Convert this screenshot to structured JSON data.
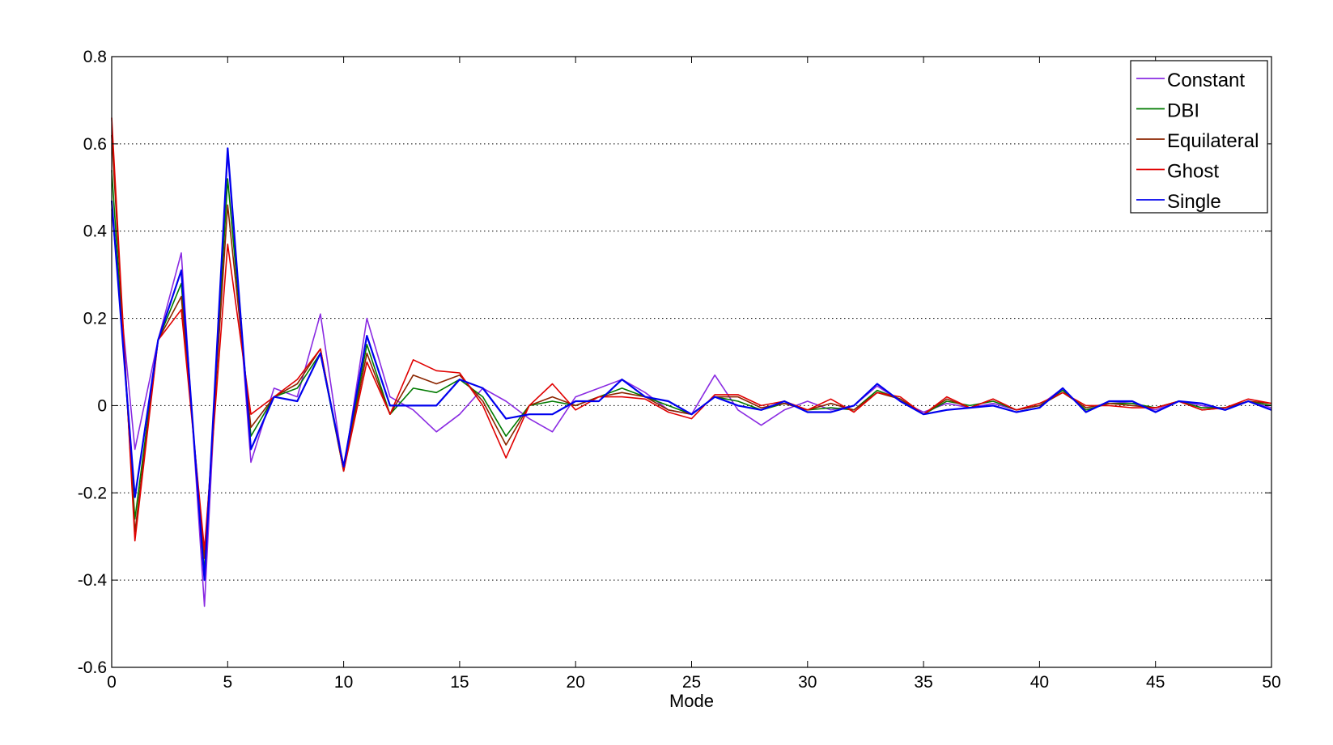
{
  "chart_data": {
    "type": "line",
    "title": "",
    "xlabel": "Mode",
    "ylabel": "",
    "xlim": [
      0,
      50
    ],
    "ylim": [
      -0.6,
      0.8
    ],
    "xticks": [
      0,
      5,
      10,
      15,
      20,
      25,
      30,
      35,
      40,
      45,
      50
    ],
    "yticks": [
      -0.6,
      -0.4,
      -0.2,
      0,
      0.2,
      0.4,
      0.6,
      0.8
    ],
    "grid": "horizontal-dotted",
    "legend_position": "top-right",
    "x": [
      0,
      1,
      2,
      3,
      4,
      5,
      6,
      7,
      8,
      9,
      10,
      11,
      12,
      13,
      14,
      15,
      16,
      17,
      18,
      19,
      20,
      21,
      22,
      23,
      24,
      25,
      26,
      27,
      28,
      29,
      30,
      31,
      32,
      33,
      34,
      35,
      36,
      37,
      38,
      39,
      40,
      41,
      42,
      43,
      44,
      45,
      46,
      47,
      48,
      49,
      50
    ],
    "series": [
      {
        "name": "Constant",
        "color": "#8a2be2",
        "values": [
          0.45,
          -0.1,
          0.15,
          0.35,
          -0.46,
          0.58,
          -0.13,
          0.04,
          0.02,
          0.21,
          -0.15,
          0.2,
          0.02,
          -0.01,
          -0.06,
          -0.02,
          0.04,
          0.01,
          -0.03,
          -0.06,
          0.02,
          0.04,
          0.06,
          0.03,
          -0.01,
          -0.02,
          0.07,
          -0.01,
          -0.045,
          -0.01,
          0.01,
          -0.01,
          0.0,
          0.045,
          0.01,
          -0.015,
          0.005,
          -0.005,
          0.005,
          -0.01,
          0.0,
          0.04,
          -0.015,
          0.01,
          0.005,
          -0.01,
          0.01,
          0.0,
          -0.01,
          0.01,
          -0.005
        ]
      },
      {
        "name": "DBI",
        "color": "#007a00",
        "values": [
          0.54,
          -0.26,
          0.15,
          0.28,
          -0.38,
          0.52,
          -0.07,
          0.02,
          0.04,
          0.12,
          -0.15,
          0.14,
          -0.02,
          0.04,
          0.03,
          0.06,
          0.02,
          -0.07,
          0.0,
          0.01,
          0.0,
          0.02,
          0.04,
          0.02,
          0.0,
          -0.02,
          0.02,
          0.01,
          -0.01,
          0.005,
          -0.01,
          -0.005,
          -0.01,
          0.035,
          0.015,
          -0.02,
          0.01,
          0.0,
          0.01,
          -0.01,
          0.0,
          0.035,
          -0.01,
          0.005,
          0.005,
          -0.005,
          0.01,
          -0.005,
          -0.005,
          0.01,
          0.0
        ]
      },
      {
        "name": "Equilateral",
        "color": "#8b2500",
        "values": [
          0.62,
          -0.29,
          0.15,
          0.25,
          -0.35,
          0.46,
          -0.05,
          0.02,
          0.05,
          0.13,
          -0.15,
          0.12,
          -0.02,
          0.07,
          0.05,
          0.07,
          0.01,
          -0.09,
          0.0,
          0.02,
          0.0,
          0.02,
          0.03,
          0.02,
          -0.01,
          -0.02,
          0.02,
          0.02,
          -0.005,
          0.005,
          -0.01,
          0.005,
          -0.01,
          0.03,
          0.015,
          -0.02,
          0.015,
          -0.005,
          0.015,
          -0.01,
          0.0,
          0.03,
          -0.005,
          0.005,
          0.0,
          -0.005,
          0.01,
          -0.01,
          -0.005,
          0.01,
          0.005
        ]
      },
      {
        "name": "Ghost",
        "color": "#e00000",
        "values": [
          0.66,
          -0.31,
          0.15,
          0.22,
          -0.33,
          0.37,
          -0.02,
          0.02,
          0.06,
          0.13,
          -0.15,
          0.1,
          -0.02,
          0.105,
          0.08,
          0.075,
          0.0,
          -0.12,
          0.0,
          0.05,
          -0.01,
          0.02,
          0.02,
          0.015,
          -0.015,
          -0.03,
          0.025,
          0.025,
          0.0,
          0.01,
          -0.01,
          0.015,
          -0.015,
          0.03,
          0.02,
          -0.02,
          0.02,
          -0.005,
          0.015,
          -0.01,
          0.005,
          0.03,
          0.0,
          0.0,
          -0.005,
          -0.005,
          0.01,
          -0.01,
          -0.005,
          0.015,
          0.005
        ]
      },
      {
        "name": "Single",
        "color": "#0000ee",
        "values": [
          0.47,
          -0.21,
          0.15,
          0.31,
          -0.4,
          0.59,
          -0.1,
          0.02,
          0.01,
          0.12,
          -0.14,
          0.16,
          0.0,
          0.0,
          0.0,
          0.06,
          0.04,
          -0.03,
          -0.02,
          -0.02,
          0.01,
          0.01,
          0.06,
          0.02,
          0.01,
          -0.02,
          0.02,
          0.0,
          -0.01,
          0.01,
          -0.015,
          -0.015,
          0.0,
          0.05,
          0.01,
          -0.02,
          -0.01,
          -0.005,
          0.0,
          -0.015,
          -0.005,
          0.04,
          -0.015,
          0.01,
          0.01,
          -0.015,
          0.01,
          0.005,
          -0.01,
          0.01,
          -0.01
        ]
      }
    ]
  }
}
